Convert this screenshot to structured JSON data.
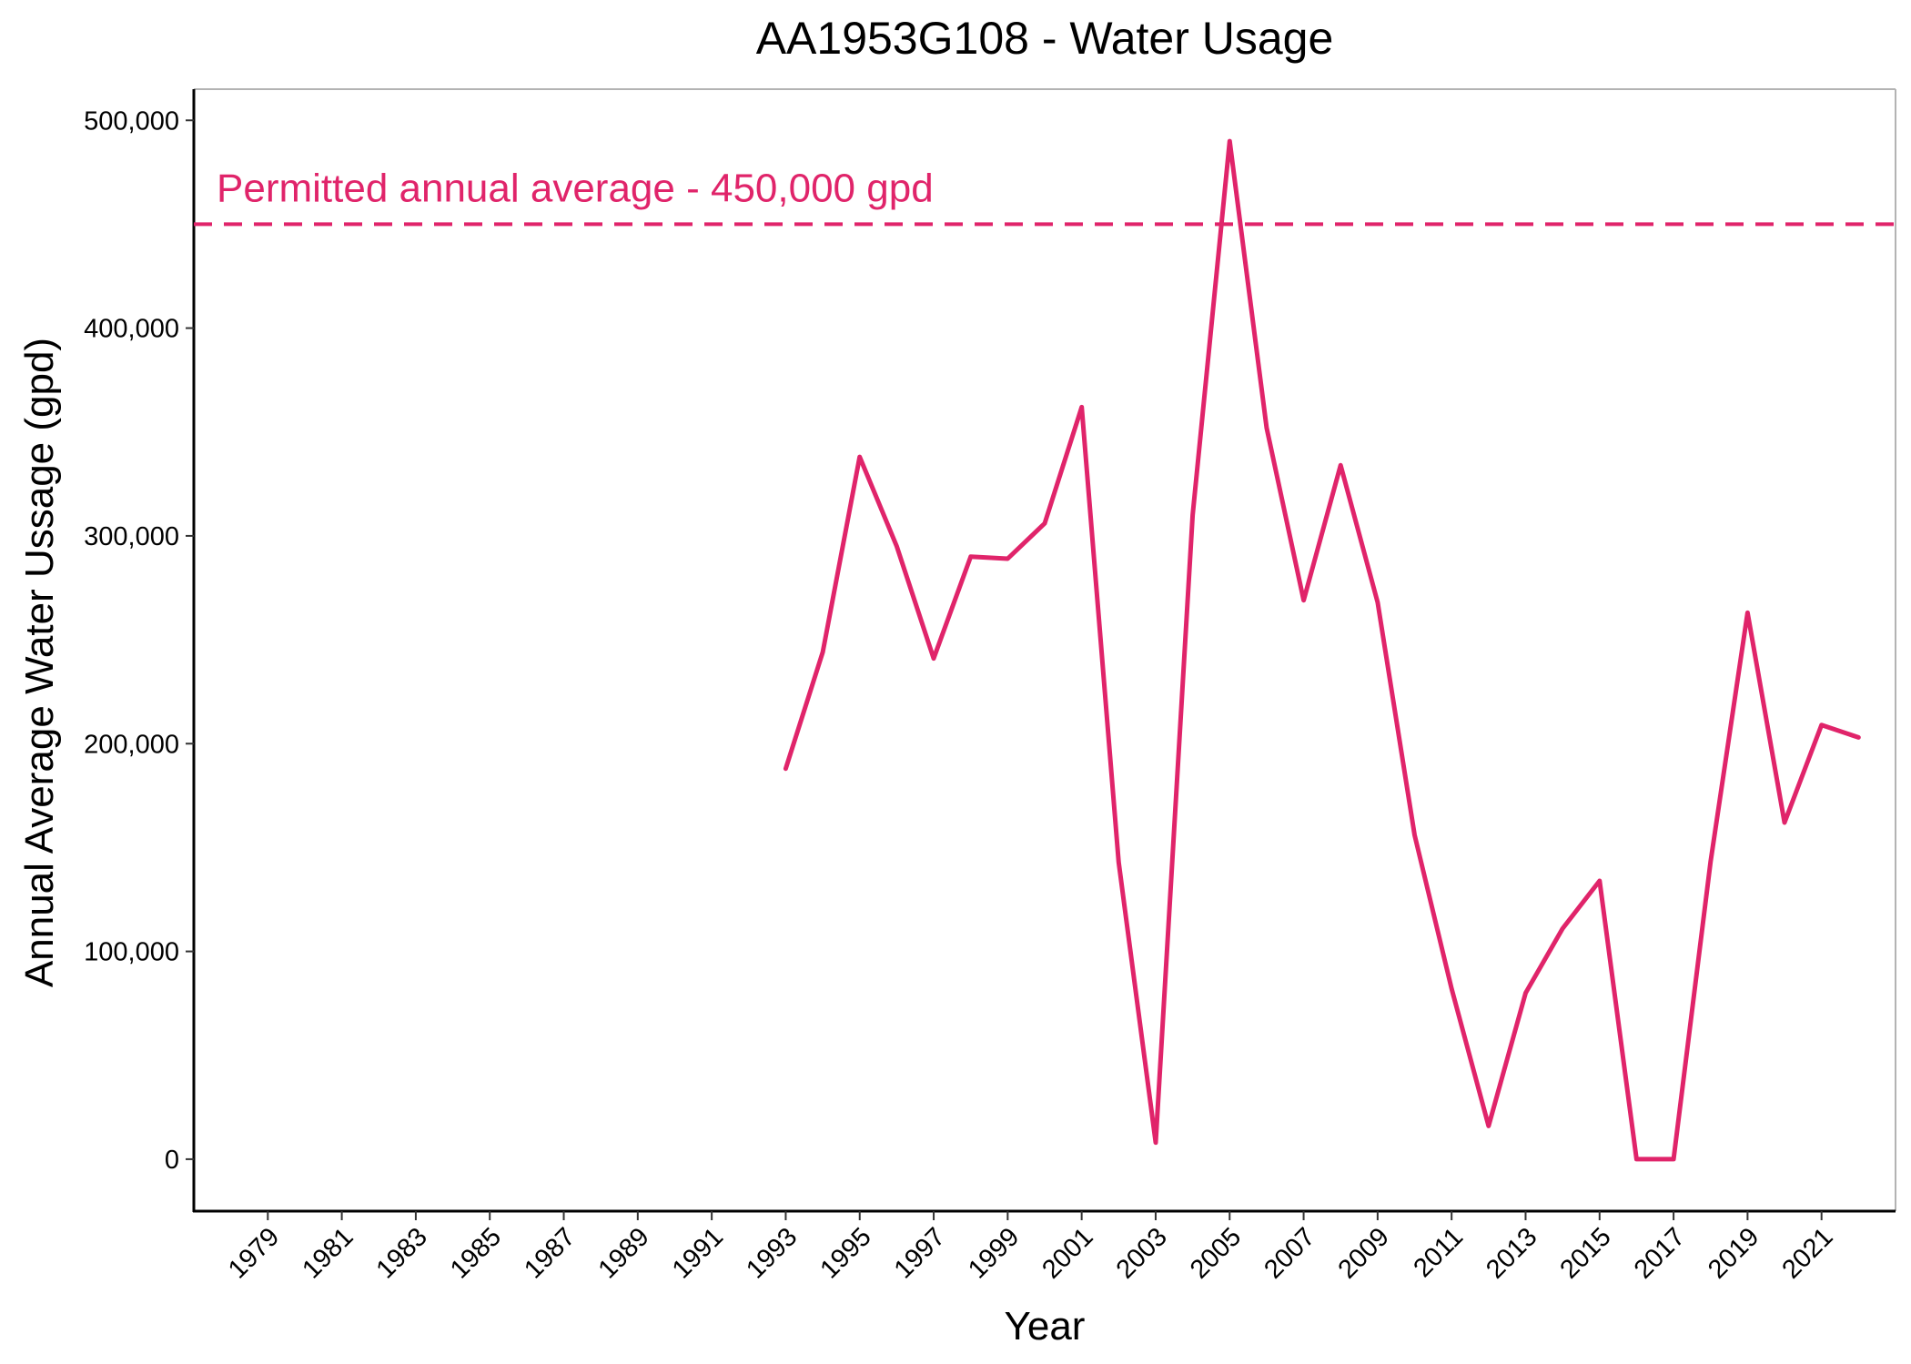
{
  "chart_data": {
    "type": "line",
    "title": "AA1953G108 - Water Usage",
    "xlabel": "Year",
    "ylabel": "Annual Average Water Ussage (gpd)",
    "xlim": [
      1977,
      2023
    ],
    "ylim": [
      -25000,
      515000
    ],
    "x_ticks": [
      1979,
      1981,
      1983,
      1985,
      1987,
      1989,
      1991,
      1993,
      1995,
      1997,
      1999,
      2001,
      2003,
      2005,
      2007,
      2009,
      2011,
      2013,
      2015,
      2017,
      2019,
      2021
    ],
    "y_ticks": [
      0,
      100000,
      200000,
      300000,
      400000,
      500000
    ],
    "y_tick_labels": [
      "0",
      "100,000",
      "200,000",
      "300,000",
      "400,000",
      "500,000"
    ],
    "grid": false,
    "colors": {
      "series": "#e0246a",
      "axis": "#000000",
      "frame": "#b3b3b3"
    },
    "series": [
      {
        "x": [
          1993,
          1994,
          1995,
          1996,
          1997,
          1998,
          1999,
          2000,
          2001,
          2002,
          2003,
          2004,
          2005,
          2006,
          2007,
          2008,
          2009,
          2010,
          2011,
          2012,
          2013,
          2014,
          2015,
          2016,
          2017,
          2018,
          2019,
          2020,
          2021,
          2022
        ],
        "values": [
          188000,
          244000,
          338000,
          295000,
          241000,
          290000,
          289000,
          306000,
          362000,
          143000,
          8000,
          310000,
          490000,
          352000,
          269000,
          334000,
          268000,
          156000,
          82000,
          16000,
          80000,
          111000,
          134000,
          0,
          0,
          143000,
          263000,
          162000,
          209000,
          203000
        ]
      }
    ],
    "reference_line": {
      "value": 450000,
      "label": "Permitted annual average - 450,000 gpd"
    }
  }
}
